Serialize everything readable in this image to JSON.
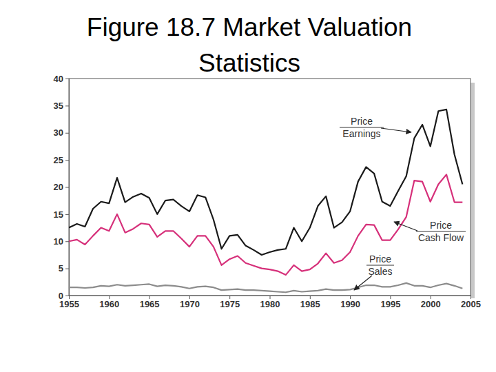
{
  "chart_data": {
    "type": "line",
    "title": "Figure 18.7 Market Valuation Statistics",
    "x": [
      1955,
      1956,
      1957,
      1958,
      1959,
      1960,
      1961,
      1962,
      1963,
      1964,
      1965,
      1966,
      1967,
      1968,
      1969,
      1970,
      1971,
      1972,
      1973,
      1974,
      1975,
      1976,
      1977,
      1978,
      1979,
      1980,
      1981,
      1982,
      1983,
      1984,
      1985,
      1986,
      1987,
      1988,
      1989,
      1990,
      1991,
      1992,
      1993,
      1994,
      1995,
      1996,
      1997,
      1998,
      1999,
      2000,
      2001,
      2002,
      2003,
      2004
    ],
    "series": [
      {
        "color": "#1a1a1a",
        "values": [
          12.5,
          13.2,
          12.7,
          16,
          17.3,
          17,
          21.7,
          17.2,
          18.2,
          18.8,
          18,
          15,
          17.5,
          17.7,
          16.5,
          15.5,
          18.5,
          18.1,
          14,
          8.6,
          11,
          11.2,
          9.2,
          8.4,
          7.5,
          8,
          8.4,
          8.6,
          12.5,
          10,
          12.5,
          16.5,
          18.3,
          12.5,
          13.5,
          15.5,
          21,
          23.7,
          22.5,
          17.3,
          16.5,
          19.3,
          22,
          29,
          31.5,
          27.5,
          34,
          34.3,
          26,
          20.5
        ]
      },
      {
        "color": "#d6307a",
        "values": [
          10,
          10.3,
          9.4,
          11,
          12.5,
          11.9,
          15,
          11.6,
          12.3,
          13.3,
          13.1,
          10.8,
          11.9,
          11.9,
          10.5,
          9,
          11,
          11,
          9,
          5.6,
          6.7,
          7.3,
          6,
          5.5,
          5,
          4.8,
          4.5,
          3.8,
          5.6,
          4.5,
          4.8,
          5.9,
          7.8,
          6,
          6.5,
          8,
          11,
          13.1,
          13,
          10.2,
          10.2,
          12.2,
          14.5,
          21.2,
          21,
          17.3,
          20.5,
          22.3,
          17.2,
          17.2
        ]
      },
      {
        "color": "#8c8c8c",
        "values": [
          1.5,
          1.5,
          1.4,
          1.5,
          1.8,
          1.7,
          2,
          1.8,
          1.9,
          2,
          2.1,
          1.7,
          1.9,
          1.8,
          1.6,
          1.3,
          1.6,
          1.7,
          1.5,
          1,
          1.1,
          1.2,
          1,
          1,
          0.9,
          0.8,
          0.7,
          0.6,
          0.9,
          0.7,
          0.8,
          0.9,
          1.2,
          1,
          1,
          1.1,
          1.5,
          1.9,
          1.9,
          1.6,
          1.6,
          1.9,
          2.3,
          1.8,
          1.8,
          1.5,
          1.9,
          2.2,
          1.8,
          1.3
        ]
      }
    ],
    "annotations": [
      {
        "lines": [
          "Price",
          "Earnings"
        ]
      },
      {
        "lines": [
          "Price",
          "Cash Flow"
        ]
      },
      {
        "lines": [
          "Price",
          "Sales"
        ]
      }
    ],
    "xlim": [
      1955,
      2005
    ],
    "xticks": [
      1955,
      1960,
      1965,
      1970,
      1975,
      1980,
      1985,
      1990,
      1995,
      2000,
      2005
    ],
    "ylim": [
      0,
      40
    ],
    "yticks": [
      0,
      5,
      10,
      15,
      20,
      25,
      30,
      35,
      40
    ],
    "grid": false
  }
}
